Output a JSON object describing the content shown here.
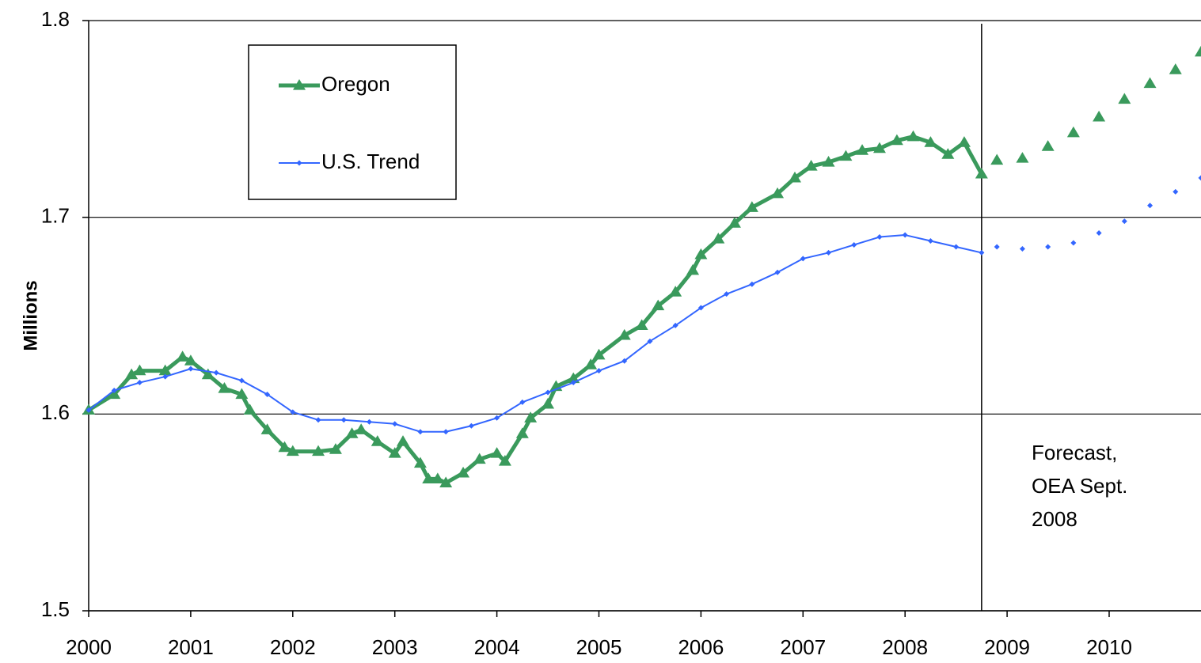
{
  "chart_data": {
    "type": "line",
    "ylabel": "Millions",
    "xlim": [
      2000,
      2010.9
    ],
    "ylim": [
      1.5,
      1.8
    ],
    "xticks": [
      2000,
      2001,
      2002,
      2003,
      2004,
      2005,
      2006,
      2007,
      2008,
      2009,
      2010
    ],
    "yticks": [
      1.5,
      1.6,
      1.7,
      1.8
    ],
    "grid": true,
    "forecast_start": 2008.75,
    "annotation": [
      "Forecast,",
      "OEA Sept.",
      "2008"
    ],
    "series": [
      {
        "name": "Oregon",
        "color": "#3a9a5c",
        "marker": "triangle",
        "line": true,
        "x": [
          2000.0,
          2000.25,
          2000.42,
          2000.5,
          2000.75,
          2000.92,
          2001.0,
          2001.17,
          2001.33,
          2001.5,
          2001.58,
          2001.75,
          2001.92,
          2002.0,
          2002.25,
          2002.42,
          2002.58,
          2002.67,
          2002.83,
          2003.0,
          2003.08,
          2003.25,
          2003.33,
          2003.42,
          2003.5,
          2003.67,
          2003.83,
          2004.0,
          2004.08,
          2004.25,
          2004.33,
          2004.5,
          2004.58,
          2004.75,
          2004.92,
          2005.0,
          2005.25,
          2005.42,
          2005.58,
          2005.75,
          2005.92,
          2006.0,
          2006.17,
          2006.33,
          2006.5,
          2006.75,
          2006.92,
          2007.08,
          2007.25,
          2007.42,
          2007.58,
          2007.75,
          2007.92,
          2008.08,
          2008.25,
          2008.42,
          2008.58,
          2008.75
        ],
        "values": [
          1.602,
          1.61,
          1.62,
          1.622,
          1.622,
          1.629,
          1.627,
          1.62,
          1.613,
          1.61,
          1.602,
          1.592,
          1.583,
          1.581,
          1.581,
          1.582,
          1.59,
          1.592,
          1.586,
          1.58,
          1.586,
          1.575,
          1.567,
          1.567,
          1.565,
          1.57,
          1.577,
          1.58,
          1.576,
          1.59,
          1.598,
          1.605,
          1.614,
          1.618,
          1.625,
          1.63,
          1.64,
          1.645,
          1.655,
          1.662,
          1.673,
          1.681,
          1.689,
          1.697,
          1.705,
          1.712,
          1.72,
          1.726,
          1.728,
          1.731,
          1.734,
          1.735,
          1.739,
          1.741,
          1.738,
          1.732,
          1.738,
          1.722
        ]
      },
      {
        "name": "U.S. Trend",
        "color": "#3366ff",
        "marker": "diamond",
        "line": true,
        "x": [
          2000.0,
          2000.25,
          2000.5,
          2000.75,
          2001.0,
          2001.25,
          2001.5,
          2001.75,
          2002.0,
          2002.25,
          2002.5,
          2002.75,
          2003.0,
          2003.25,
          2003.5,
          2003.75,
          2004.0,
          2004.25,
          2004.5,
          2004.75,
          2005.0,
          2005.25,
          2005.5,
          2005.75,
          2006.0,
          2006.25,
          2006.5,
          2006.75,
          2007.0,
          2007.25,
          2007.5,
          2007.75,
          2008.0,
          2008.25,
          2008.5,
          2008.75
        ],
        "values": [
          1.602,
          1.612,
          1.616,
          1.619,
          1.623,
          1.621,
          1.617,
          1.61,
          1.601,
          1.597,
          1.597,
          1.596,
          1.595,
          1.591,
          1.591,
          1.594,
          1.598,
          1.606,
          1.611,
          1.616,
          1.622,
          1.627,
          1.637,
          1.645,
          1.654,
          1.661,
          1.666,
          1.672,
          1.679,
          1.682,
          1.686,
          1.69,
          1.691,
          1.688,
          1.685,
          1.682
        ]
      },
      {
        "color": "#3a9a5c",
        "marker": "triangle",
        "line": false,
        "x": [
          2008.9,
          2009.15,
          2009.4,
          2009.65,
          2009.9,
          2010.15,
          2010.4,
          2010.65,
          2010.9
        ],
        "values": [
          1.729,
          1.73,
          1.736,
          1.743,
          1.751,
          1.76,
          1.768,
          1.775,
          1.784
        ]
      },
      {
        "color": "#3366ff",
        "marker": "diamond",
        "line": false,
        "x": [
          2008.9,
          2009.15,
          2009.4,
          2009.65,
          2009.9,
          2010.15,
          2010.4,
          2010.65,
          2010.9
        ],
        "values": [
          1.685,
          1.684,
          1.685,
          1.687,
          1.692,
          1.698,
          1.706,
          1.713,
          1.72
        ]
      }
    ]
  }
}
